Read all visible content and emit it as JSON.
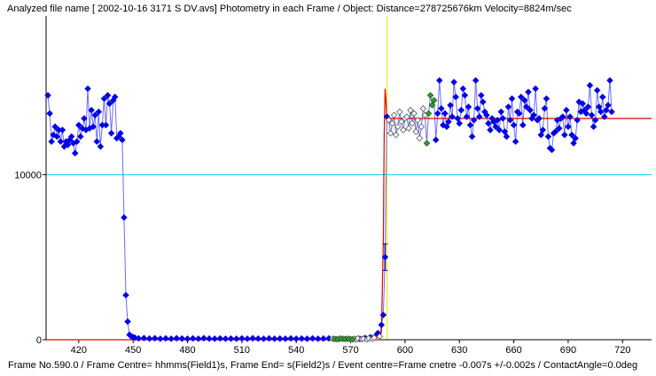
{
  "header": {
    "title": "Analyzed file name [ 2002-10-16 3171 S DV.avs]   Photometry in each Frame /  Object: Distance=278725676km Velocity=8824m/sec"
  },
  "footer": {
    "status": "Frame No.590.0 / Frame Centre= hhmms(Field1)s,  Frame End= s(Field2)s / Event centre=Frame cnetre -0.007s +/-0.002s / ContactAngle=0.0deg"
  },
  "colors": {
    "data_line": "#6b6bff",
    "data_point": "#0000e6",
    "fit_line": "#e60000",
    "reference_line": "#00d2e0",
    "event_marker": "#e6e600",
    "axis": "#000000",
    "excluded_point": "#ffffff",
    "green_point": "#2e9e2e"
  },
  "chart_data": {
    "type": "line",
    "xlabel": "",
    "ylabel": "",
    "xlim": [
      402,
      736
    ],
    "ylim": [
      0,
      19500
    ],
    "x_ticks": [
      420,
      450,
      480,
      510,
      540,
      570,
      600,
      630,
      660,
      690,
      720
    ],
    "y_ticks": [
      0,
      10000
    ],
    "reference_line_y": 10000,
    "event_frame": 590,
    "model_fit": {
      "x": [
        402,
        586,
        587,
        588,
        588.5,
        589,
        589.5,
        590,
        591,
        736
      ],
      "y": [
        0,
        0,
        500,
        6000,
        12500,
        15200,
        14400,
        13400,
        13400,
        13400
      ]
    },
    "event_error_bar": {
      "x": 589,
      "y": 5000,
      "ylow": 4200,
      "yhigh": 5800
    },
    "series": [
      {
        "points": [
          [
            403,
            14800
          ],
          [
            404,
            13700
          ],
          [
            405,
            12000
          ],
          [
            406,
            12400
          ],
          [
            407,
            12900
          ],
          [
            408,
            12300
          ],
          [
            409,
            12700
          ],
          [
            410,
            12000
          ],
          [
            411,
            12700
          ],
          [
            412,
            11700
          ],
          [
            413,
            12000
          ],
          [
            414,
            11800
          ],
          [
            415,
            12100
          ],
          [
            416,
            12300
          ],
          [
            417,
            11900
          ],
          [
            418,
            11300
          ],
          [
            419,
            12000
          ],
          [
            420,
            13000
          ],
          [
            421,
            12300
          ],
          [
            422,
            12800
          ],
          [
            423,
            13400
          ],
          [
            424,
            12700
          ],
          [
            425,
            15200
          ],
          [
            426,
            12800
          ],
          [
            427,
            13900
          ],
          [
            428,
            12900
          ],
          [
            429,
            13600
          ],
          [
            430,
            12000
          ],
          [
            431,
            13800
          ],
          [
            432,
            11700
          ],
          [
            433,
            13000
          ],
          [
            434,
            14600
          ],
          [
            435,
            13000
          ],
          [
            436,
            14800
          ],
          [
            437,
            14300
          ],
          [
            438,
            12500
          ],
          [
            439,
            14500
          ],
          [
            440,
            14700
          ],
          [
            441,
            12200
          ],
          [
            442,
            12300
          ],
          [
            443,
            12500
          ],
          [
            444,
            12100
          ],
          [
            445,
            7400
          ],
          [
            446,
            2700
          ],
          [
            447,
            1100
          ],
          [
            448,
            300
          ],
          [
            449,
            200
          ],
          [
            450,
            160
          ],
          [
            451,
            120
          ],
          [
            453,
            80
          ],
          [
            456,
            100
          ],
          [
            459,
            70
          ],
          [
            462,
            90
          ],
          [
            465,
            60
          ],
          [
            468,
            80
          ],
          [
            471,
            60
          ],
          [
            474,
            90
          ],
          [
            477,
            70
          ],
          [
            480,
            60
          ],
          [
            483,
            80
          ],
          [
            486,
            60
          ],
          [
            489,
            90
          ],
          [
            492,
            70
          ],
          [
            495,
            60
          ],
          [
            498,
            80
          ],
          [
            501,
            60
          ],
          [
            504,
            70
          ],
          [
            507,
            60
          ],
          [
            510,
            80
          ],
          [
            513,
            60
          ],
          [
            516,
            90
          ],
          [
            519,
            70
          ],
          [
            522,
            60
          ],
          [
            525,
            80
          ],
          [
            528,
            60
          ],
          [
            531,
            70
          ],
          [
            534,
            60
          ],
          [
            537,
            80
          ],
          [
            540,
            60
          ],
          [
            543,
            70
          ],
          [
            546,
            60
          ],
          [
            549,
            80
          ],
          [
            552,
            60
          ],
          [
            555,
            70
          ],
          [
            558,
            80
          ],
          [
            575,
            50
          ],
          [
            578,
            100
          ],
          [
            581,
            150
          ],
          [
            584,
            250
          ],
          [
            585,
            400
          ],
          [
            587,
            900
          ],
          [
            588,
            1500
          ],
          [
            589,
            5000
          ],
          [
            590,
            13500
          ],
          [
            617,
            12100
          ],
          [
            618,
            13700
          ],
          [
            619,
            15700
          ],
          [
            620,
            14000
          ],
          [
            621,
            13000
          ],
          [
            622,
            13700
          ],
          [
            623,
            12900
          ],
          [
            624,
            13200
          ],
          [
            625,
            14200
          ],
          [
            626,
            13500
          ],
          [
            627,
            15600
          ],
          [
            628,
            14700
          ],
          [
            629,
            13400
          ],
          [
            630,
            13100
          ],
          [
            631,
            13900
          ],
          [
            632,
            15200
          ],
          [
            633,
            14800
          ],
          [
            634,
            13500
          ],
          [
            635,
            14100
          ],
          [
            636,
            13000
          ],
          [
            637,
            12300
          ],
          [
            638,
            13300
          ],
          [
            639,
            15700
          ],
          [
            640,
            14000
          ],
          [
            641,
            13500
          ],
          [
            642,
            14800
          ],
          [
            643,
            14400
          ],
          [
            644,
            13800
          ],
          [
            645,
            13600
          ],
          [
            646,
            13100
          ],
          [
            647,
            12700
          ],
          [
            648,
            13400
          ],
          [
            649,
            13200
          ],
          [
            650,
            12900
          ],
          [
            651,
            13300
          ],
          [
            652,
            12700
          ],
          [
            653,
            13800
          ],
          [
            654,
            13400
          ],
          [
            655,
            12600
          ],
          [
            656,
            12300
          ],
          [
            657,
            14100
          ],
          [
            658,
            13300
          ],
          [
            659,
            14600
          ],
          [
            660,
            13000
          ],
          [
            661,
            12000
          ],
          [
            662,
            13800
          ],
          [
            663,
            13700
          ],
          [
            664,
            14700
          ],
          [
            665,
            13000
          ],
          [
            666,
            14500
          ],
          [
            667,
            14100
          ],
          [
            668,
            15000
          ],
          [
            669,
            13900
          ],
          [
            670,
            13400
          ],
          [
            671,
            13600
          ],
          [
            672,
            15200
          ],
          [
            673,
            13300
          ],
          [
            674,
            13400
          ],
          [
            675,
            12400
          ],
          [
            676,
            12700
          ],
          [
            677,
            14000
          ],
          [
            678,
            14600
          ],
          [
            679,
            12300
          ],
          [
            680,
            11600
          ],
          [
            681,
            11500
          ],
          [
            682,
            12500
          ],
          [
            683,
            12600
          ],
          [
            684,
            13300
          ],
          [
            685,
            12800
          ],
          [
            686,
            13400
          ],
          [
            687,
            13500
          ],
          [
            688,
            12400
          ],
          [
            689,
            13900
          ],
          [
            690,
            12900
          ],
          [
            691,
            13500
          ],
          [
            692,
            12400
          ],
          [
            693,
            11900
          ],
          [
            694,
            12200
          ],
          [
            695,
            13300
          ],
          [
            696,
            14400
          ],
          [
            697,
            13800
          ],
          [
            698,
            14300
          ],
          [
            699,
            13900
          ],
          [
            700,
            13700
          ],
          [
            701,
            14100
          ],
          [
            702,
            15400
          ],
          [
            703,
            13600
          ],
          [
            704,
            12900
          ],
          [
            705,
            13300
          ],
          [
            706,
            15100
          ],
          [
            707,
            14100
          ],
          [
            708,
            13800
          ],
          [
            709,
            14700
          ],
          [
            710,
            13500
          ],
          [
            711,
            13900
          ],
          [
            712,
            14200
          ],
          [
            713,
            15700
          ],
          [
            714,
            13800
          ]
        ]
      }
    ],
    "excluded_points": [
      [
        560,
        60
      ],
      [
        562,
        40
      ],
      [
        564,
        70
      ],
      [
        566,
        50
      ],
      [
        568,
        60
      ],
      [
        570,
        30
      ],
      [
        572,
        50
      ],
      [
        573,
        20
      ],
      [
        574,
        80
      ],
      [
        576,
        40
      ],
      [
        577,
        60
      ],
      [
        579,
        30
      ],
      [
        580,
        90
      ],
      [
        582,
        60
      ],
      [
        583,
        120
      ],
      [
        586,
        200
      ],
      [
        591,
        13300
      ],
      [
        592,
        12500
      ],
      [
        593,
        13100
      ],
      [
        594,
        13600
      ],
      [
        595,
        12400
      ],
      [
        596,
        12900
      ],
      [
        597,
        13800
      ],
      [
        598,
        13200
      ],
      [
        599,
        12700
      ],
      [
        600,
        13400
      ],
      [
        601,
        13500
      ],
      [
        602,
        12800
      ],
      [
        603,
        13900
      ],
      [
        604,
        13100
      ],
      [
        605,
        13700
      ],
      [
        606,
        12600
      ],
      [
        607,
        13300
      ],
      [
        608,
        12200
      ],
      [
        609,
        12900
      ],
      [
        610,
        14000
      ],
      [
        611,
        13600
      ]
    ],
    "green_points": [
      [
        561,
        50
      ],
      [
        563,
        30
      ],
      [
        565,
        60
      ],
      [
        567,
        40
      ],
      [
        569,
        50
      ],
      [
        571,
        30
      ],
      [
        612,
        11900
      ],
      [
        613,
        13700
      ],
      [
        614,
        14800
      ],
      [
        615,
        14200
      ],
      [
        616,
        14500
      ]
    ]
  }
}
